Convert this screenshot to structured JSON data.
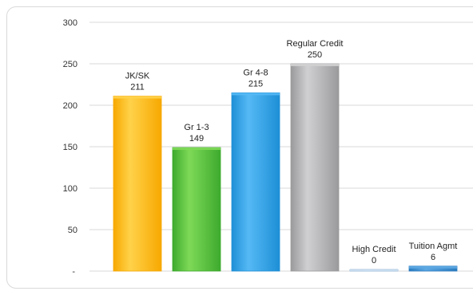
{
  "chart_data": {
    "type": "bar",
    "categories": [
      "JK/SK",
      "Gr 1-3",
      "Gr 4-8",
      "Regular Credit",
      "High Credit",
      "Tuition Agmt"
    ],
    "values": [
      211,
      149,
      215,
      250,
      0,
      6
    ],
    "ylim": [
      0,
      300
    ],
    "yticks": [
      300,
      250,
      200,
      150,
      100,
      50
    ],
    "zero_tick_label": "-",
    "grid": true,
    "legend": "none",
    "colors": [
      "#F7A800",
      "#3DAA2E",
      "#1E8FD6",
      "#9A9A9C",
      "#8FB4D6",
      "#2B7BBE"
    ],
    "colors_light": [
      "#FFD24A",
      "#7ED957",
      "#55B9F5",
      "#D0D0D2",
      "#C9DDF0",
      "#5DA8E3"
    ]
  }
}
